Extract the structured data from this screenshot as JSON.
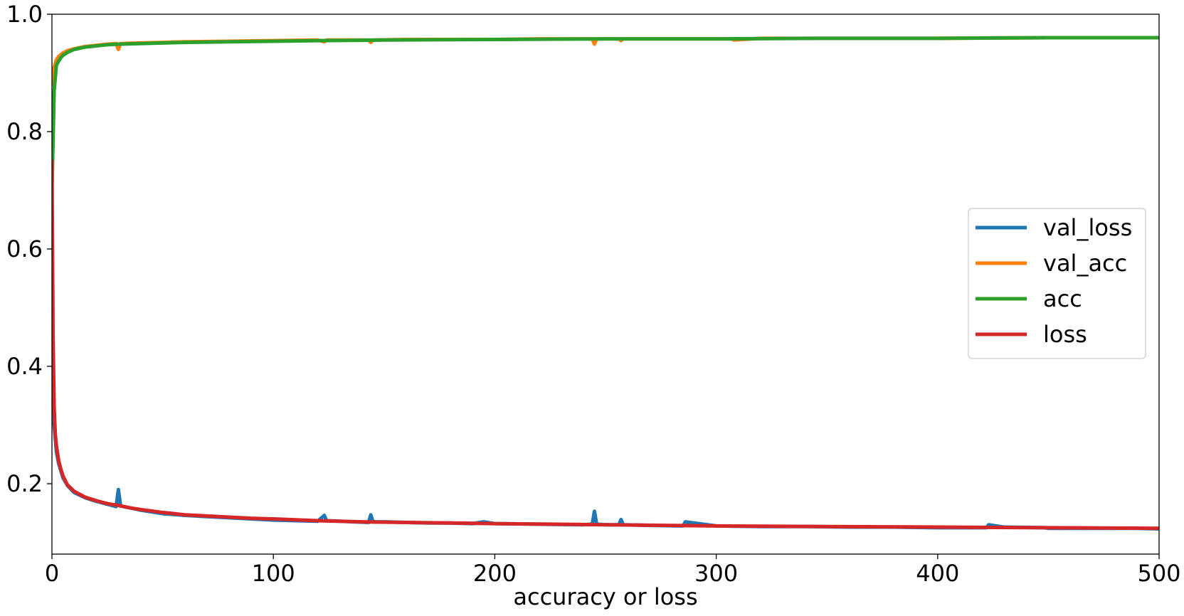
{
  "chart_data": {
    "type": "line",
    "title": "",
    "xlabel": "accuracy or loss",
    "ylabel": "",
    "xlim": [
      0,
      500
    ],
    "ylim": [
      0.08,
      1.0
    ],
    "xticks": [
      0,
      100,
      200,
      300,
      400,
      500
    ],
    "xtick_labels": [
      "0",
      "100",
      "200",
      "300",
      "400",
      "500"
    ],
    "yticks": [
      0.2,
      0.4,
      0.6,
      0.8,
      1.0
    ],
    "ytick_labels": [
      "0.2",
      "0.4",
      "0.6",
      "0.8",
      "1.0"
    ],
    "grid": false,
    "legend_position": "center-right",
    "series": [
      {
        "name": "val_loss",
        "color": "#1f77b4",
        "x": [
          0,
          1,
          2,
          3,
          5,
          7,
          10,
          15,
          20,
          25,
          29,
          30,
          31,
          35,
          40,
          50,
          60,
          70,
          80,
          90,
          100,
          110,
          120,
          123,
          124,
          130,
          143,
          144,
          145,
          150,
          160,
          170,
          180,
          190,
          195,
          200,
          220,
          240,
          244,
          245,
          246,
          250,
          256,
          257,
          258,
          270,
          285,
          286,
          300,
          320,
          340,
          360,
          380,
          400,
          422,
          423,
          430,
          448,
          450,
          470,
          490,
          500
        ],
        "values": [
          0.36,
          0.3,
          0.255,
          0.235,
          0.21,
          0.197,
          0.185,
          0.176,
          0.17,
          0.165,
          0.161,
          0.19,
          0.162,
          0.159,
          0.155,
          0.149,
          0.146,
          0.144,
          0.142,
          0.14,
          0.138,
          0.137,
          0.136,
          0.146,
          0.137,
          0.136,
          0.134,
          0.147,
          0.135,
          0.135,
          0.134,
          0.133,
          0.133,
          0.132,
          0.135,
          0.132,
          0.131,
          0.13,
          0.131,
          0.153,
          0.131,
          0.13,
          0.13,
          0.139,
          0.13,
          0.129,
          0.128,
          0.135,
          0.128,
          0.127,
          0.127,
          0.126,
          0.126,
          0.125,
          0.125,
          0.13,
          0.126,
          0.125,
          0.124,
          0.124,
          0.124,
          0.123
        ]
      },
      {
        "name": "val_acc",
        "color": "#ff7f0e",
        "x": [
          0,
          1,
          2,
          3,
          5,
          7,
          10,
          15,
          20,
          25,
          29,
          30,
          31,
          40,
          50,
          60,
          80,
          100,
          120,
          123,
          124,
          143,
          144,
          145,
          160,
          180,
          200,
          220,
          244,
          245,
          246,
          256,
          257,
          258,
          280,
          300,
          307,
          308,
          320,
          350,
          400,
          450,
          500
        ],
        "values": [
          0.88,
          0.91,
          0.922,
          0.928,
          0.934,
          0.938,
          0.941,
          0.945,
          0.947,
          0.949,
          0.95,
          0.94,
          0.95,
          0.951,
          0.952,
          0.953,
          0.954,
          0.955,
          0.956,
          0.953,
          0.956,
          0.956,
          0.952,
          0.956,
          0.957,
          0.957,
          0.957,
          0.958,
          0.958,
          0.949,
          0.958,
          0.958,
          0.955,
          0.958,
          0.958,
          0.958,
          0.958,
          0.956,
          0.959,
          0.959,
          0.959,
          0.96,
          0.96
        ]
      },
      {
        "name": "acc",
        "color": "#2ca02c",
        "x": [
          0,
          1,
          2,
          3,
          4,
          5,
          7,
          10,
          15,
          20,
          25,
          30,
          40,
          50,
          60,
          80,
          100,
          120,
          150,
          200,
          250,
          300,
          350,
          400,
          450,
          500
        ],
        "values": [
          0.7,
          0.87,
          0.913,
          0.92,
          0.926,
          0.93,
          0.935,
          0.94,
          0.944,
          0.946,
          0.948,
          0.949,
          0.95,
          0.951,
          0.952,
          0.953,
          0.954,
          0.955,
          0.956,
          0.957,
          0.958,
          0.958,
          0.959,
          0.959,
          0.96,
          0.96
        ]
      },
      {
        "name": "loss",
        "color": "#d62728",
        "x": [
          0,
          0.5,
          1,
          1.5,
          2,
          3,
          4,
          5,
          7,
          10,
          15,
          20,
          25,
          30,
          35,
          40,
          50,
          60,
          70,
          80,
          90,
          100,
          120,
          140,
          160,
          180,
          200,
          250,
          300,
          350,
          400,
          450,
          500
        ],
        "values": [
          0.75,
          0.45,
          0.33,
          0.285,
          0.265,
          0.24,
          0.225,
          0.213,
          0.198,
          0.187,
          0.177,
          0.171,
          0.166,
          0.163,
          0.159,
          0.156,
          0.151,
          0.147,
          0.145,
          0.143,
          0.141,
          0.14,
          0.137,
          0.135,
          0.134,
          0.133,
          0.132,
          0.13,
          0.128,
          0.127,
          0.126,
          0.125,
          0.124
        ]
      }
    ]
  }
}
